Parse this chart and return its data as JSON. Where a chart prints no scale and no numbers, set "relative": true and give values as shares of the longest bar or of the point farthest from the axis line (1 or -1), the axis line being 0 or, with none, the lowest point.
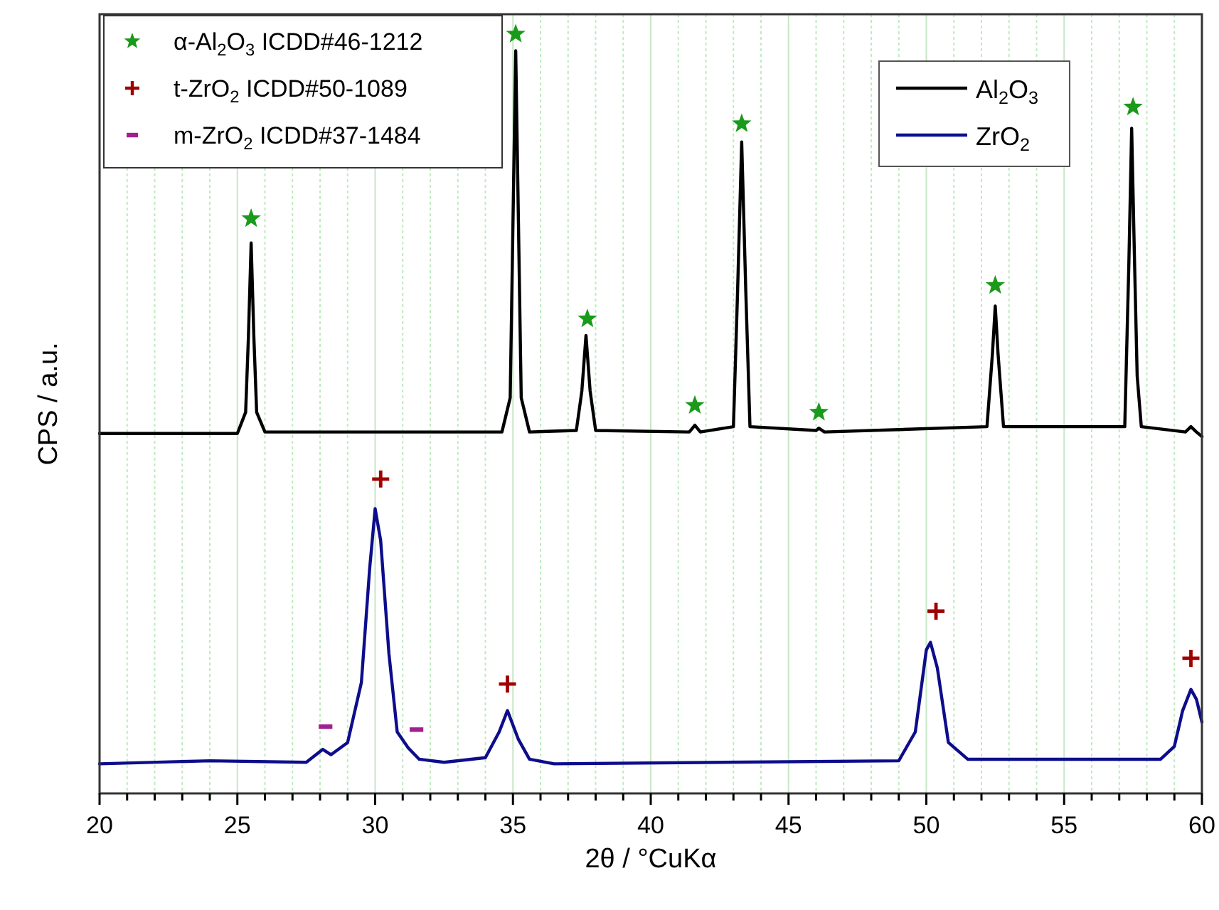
{
  "chart_data": {
    "type": "line",
    "xlabel": "2θ / °CuKα",
    "ylabel": "CPS / a.u.",
    "relative": true,
    "xlim": [
      20,
      60
    ],
    "xticks": [
      20,
      {
        "value": 21,
        "label": null
      },
      {
        "value": 22,
        "label": null
      },
      {
        "value": 23,
        "label": null
      },
      {
        "value": 24,
        "label": null
      },
      25,
      {
        "value": 26,
        "label": null
      },
      {
        "value": 27,
        "label": null
      },
      {
        "value": 28,
        "label": null
      },
      {
        "value": 29,
        "label": null
      },
      30,
      {
        "value": 31,
        "label": null
      },
      {
        "value": 32,
        "label": null
      },
      {
        "value": 33,
        "label": null
      },
      {
        "value": 34,
        "label": null
      },
      35,
      {
        "value": 36,
        "label": null
      },
      {
        "value": 37,
        "label": null
      },
      {
        "value": 38,
        "label": null
      },
      {
        "value": 39,
        "label": null
      },
      40,
      {
        "value": 41,
        "label": null
      },
      {
        "value": 42,
        "label": null
      },
      {
        "value": 43,
        "label": null
      },
      {
        "value": 44,
        "label": null
      },
      45,
      {
        "value": 46,
        "label": null
      },
      {
        "value": 47,
        "label": null
      },
      {
        "value": 48,
        "label": null
      },
      {
        "value": 49,
        "label": null
      },
      50,
      {
        "value": 51,
        "label": null
      },
      {
        "value": 52,
        "label": null
      },
      {
        "value": 53,
        "label": null
      },
      {
        "value": 54,
        "label": null
      },
      55,
      {
        "value": 56,
        "label": null
      },
      {
        "value": 57,
        "label": null
      },
      {
        "value": 58,
        "label": null
      },
      {
        "value": 59,
        "label": null
      },
      60
    ],
    "tick_labels": "x",
    "grid": "x",
    "legend": "top",
    "series": [
      {
        "name": "α-Al$_{2}$O$_{3}$ ICDD#46-1212",
        "type": "scatter",
        "marker": "star",
        "color": "#1a9a1a",
        "x": [
          25.5,
          35.1,
          37.7,
          41.6,
          43.3,
          46.1,
          52.5,
          57.5
        ],
        "values": [
          0.757,
          1.0,
          0.625,
          0.511,
          0.882,
          0.502,
          0.669,
          0.904
        ]
      },
      {
        "name": "t-ZrO$_{2}$  ICDD#50-1089",
        "type": "scatter",
        "marker": "cross",
        "color": "#a00000",
        "x": [
          30.2,
          34.8,
          50.35,
          59.6
        ],
        "values": [
          0.414,
          0.144,
          0.24,
          0.178
        ]
      },
      {
        "name": "m-ZrO$_{2}$ ICDD#37-1484",
        "type": "scatter",
        "color": "#a0208f",
        "x": [
          28.2,
          31.5
        ],
        "values": [
          0.088,
          0.084
        ]
      },
      {
        "name": "Al$_{2}$O$_{3}$",
        "color": "#000000",
        "x": [
          20,
          25,
          25.3,
          25.4,
          25.5,
          25.6,
          25.7,
          26,
          34.6,
          34.9,
          35.0,
          35.1,
          35.2,
          35.3,
          35.6,
          37.3,
          37.5,
          37.65,
          37.8,
          38,
          41.4,
          41.6,
          41.8,
          43,
          43.15,
          43.3,
          43.45,
          43.6,
          46,
          46.1,
          46.3,
          52.2,
          52.4,
          52.5,
          52.6,
          52.8,
          57.2,
          57.35,
          57.45,
          57.55,
          57.65,
          57.8,
          59.4,
          59.6,
          59.8,
          60
        ],
        "values": [
          0.474,
          0.474,
          0.502,
          0.6,
          0.725,
          0.6,
          0.502,
          0.476,
          0.476,
          0.521,
          0.75,
          0.978,
          0.75,
          0.521,
          0.476,
          0.478,
          0.53,
          0.603,
          0.53,
          0.478,
          0.476,
          0.485,
          0.476,
          0.483,
          0.66,
          0.858,
          0.66,
          0.483,
          0.478,
          0.481,
          0.476,
          0.483,
          0.58,
          0.642,
          0.58,
          0.483,
          0.483,
          0.7,
          0.876,
          0.708,
          0.55,
          0.483,
          0.476,
          0.483,
          0.476,
          0.47
        ]
      },
      {
        "name": "ZrO$_{2}$",
        "color": "#0d0d8c",
        "x": [
          20,
          24,
          27.5,
          28.1,
          28.4,
          29,
          29.5,
          29.8,
          30,
          30.2,
          30.5,
          30.8,
          31.2,
          31.6,
          32.5,
          34,
          34.5,
          34.8,
          35.2,
          35.6,
          36.5,
          49,
          49.6,
          50,
          50.15,
          50.4,
          50.8,
          51.5,
          58.5,
          59,
          59.3,
          59.6,
          59.8,
          60
        ],
        "values": [
          0.039,
          0.043,
          0.041,
          0.058,
          0.051,
          0.067,
          0.146,
          0.296,
          0.375,
          0.333,
          0.184,
          0.081,
          0.06,
          0.045,
          0.041,
          0.047,
          0.081,
          0.109,
          0.071,
          0.045,
          0.039,
          0.043,
          0.081,
          0.189,
          0.199,
          0.165,
          0.067,
          0.045,
          0.045,
          0.062,
          0.109,
          0.137,
          0.124,
          0.094
        ]
      }
    ]
  }
}
